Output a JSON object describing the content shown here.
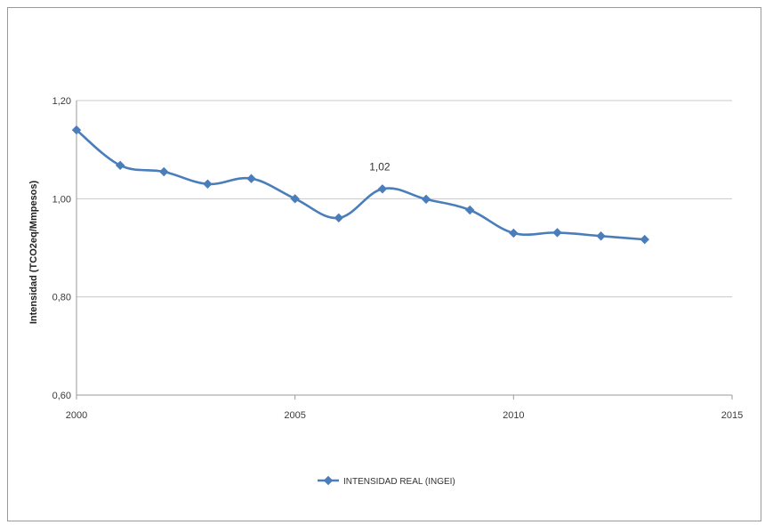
{
  "chart_data": {
    "type": "line",
    "title": "",
    "xlabel": "",
    "ylabel": "Intensidad (TCO2eq/Mmpesos)",
    "xlim": [
      2000,
      2015
    ],
    "ylim": [
      0.6,
      1.2
    ],
    "x_ticks": [
      2000,
      2005,
      2010,
      2015
    ],
    "x_tick_labels": [
      "2000",
      "2005",
      "2010",
      "2015"
    ],
    "y_ticks": [
      0.6,
      0.8,
      1.0,
      1.2
    ],
    "y_tick_labels": [
      "0,60",
      "0,80",
      "1,00",
      "1,20"
    ],
    "grid": "horizontal",
    "legend_position": "bottom",
    "series": [
      {
        "name": "INTENSIDAD REAL (INGEI)",
        "color": "#4a7ebb",
        "x": [
          2000,
          2001,
          2002,
          2003,
          2004,
          2005,
          2006,
          2007,
          2008,
          2009,
          2010,
          2011,
          2012,
          2013
        ],
        "y": [
          1.14,
          1.068,
          1.055,
          1.03,
          1.041,
          1.0,
          0.961,
          1.02,
          0.999,
          0.977,
          0.93,
          0.931,
          0.924,
          0.917
        ]
      }
    ],
    "annotations": [
      {
        "x": 2007,
        "y": 1.02,
        "text": "1,02"
      }
    ]
  }
}
